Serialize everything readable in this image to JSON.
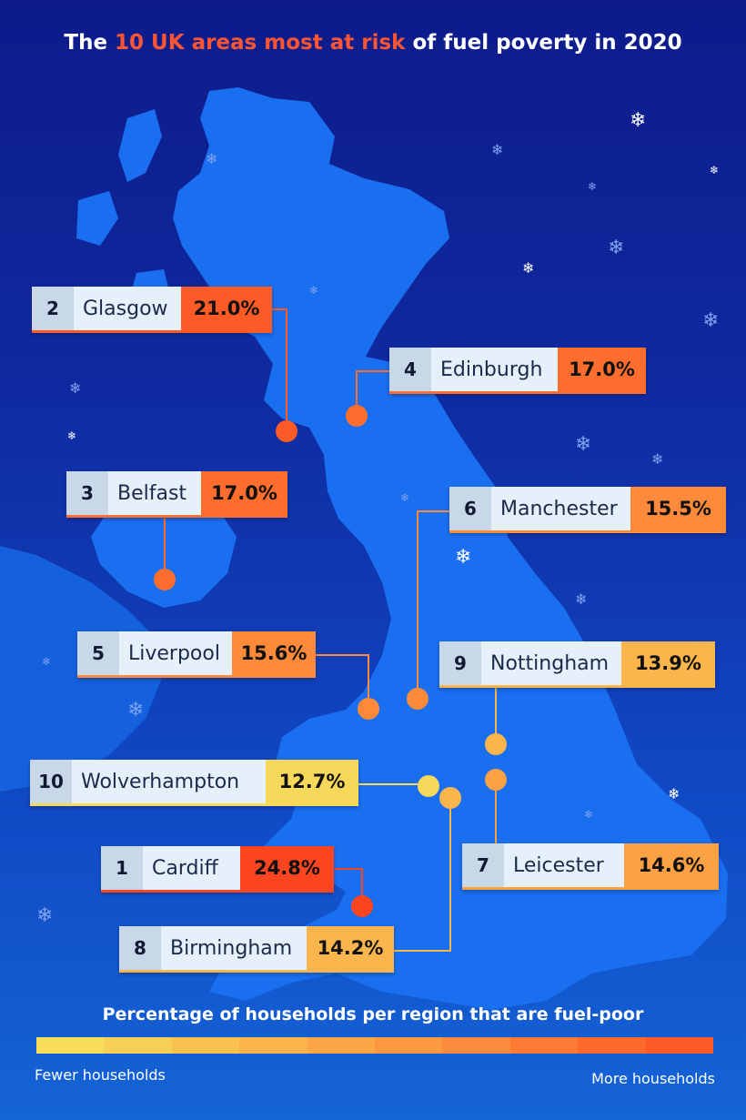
{
  "title": {
    "prefix": "The ",
    "highlight": "10 UK areas most at risk",
    "suffix": " of fuel poverty in 2020"
  },
  "colors": {
    "highlight": "#ff5533",
    "land": "#1a6ef0",
    "connector": "#f0a050"
  },
  "areas": [
    {
      "rank": "1",
      "city": "Cardiff",
      "value": "24.8%",
      "percent": 24.8,
      "color": "#fb4520"
    },
    {
      "rank": "2",
      "city": "Glasgow",
      "value": "21.0%",
      "percent": 21.0,
      "color": "#fc5a26"
    },
    {
      "rank": "3",
      "city": "Belfast",
      "value": "17.0%",
      "percent": 17.0,
      "color": "#fd6e2e"
    },
    {
      "rank": "4",
      "city": "Edinburgh",
      "value": "17.0%",
      "percent": 17.0,
      "color": "#fd6e2e"
    },
    {
      "rank": "5",
      "city": "Liverpool",
      "value": "15.6%",
      "percent": 15.6,
      "color": "#fd8a3a"
    },
    {
      "rank": "6",
      "city": "Manchester",
      "value": "15.5%",
      "percent": 15.5,
      "color": "#fd8a3a"
    },
    {
      "rank": "7",
      "city": "Leicester",
      "value": "14.6%",
      "percent": 14.6,
      "color": "#fca144"
    },
    {
      "rank": "8",
      "city": "Birmingham",
      "value": "14.2%",
      "percent": 14.2,
      "color": "#fbb54d"
    },
    {
      "rank": "9",
      "city": "Nottingham",
      "value": "13.9%",
      "percent": 13.9,
      "color": "#fbb54d"
    },
    {
      "rank": "10",
      "city": "Wolverhampton",
      "value": "12.7%",
      "percent": 12.7,
      "color": "#f8d85a"
    }
  ],
  "legend": {
    "title": "Percentage of households per region that are fuel-poor",
    "low_label": "Fewer households",
    "high_label": "More households",
    "colors": [
      "#f8dc5c",
      "#f9cf55",
      "#fbc150",
      "#fbb34b",
      "#fca646",
      "#fc9842",
      "#fc8a3c",
      "#fc7a35",
      "#fc6a2e",
      "#fd5a27"
    ]
  }
}
